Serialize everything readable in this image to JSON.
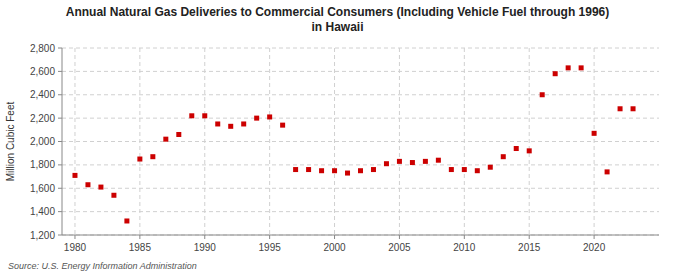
{
  "chart_data": {
    "type": "scatter",
    "title": "Annual Natural Gas Deliveries to Commercial Consumers (Including Vehicle Fuel through 1996)\nin Hawaii",
    "ylabel": "Million Cubic Feet",
    "source": "Source: U.S. Energy Information Administration",
    "color": "#cc0000",
    "marker": "square",
    "grid": true,
    "xlim": [
      1979,
      2025
    ],
    "ylim": [
      1200,
      2800
    ],
    "xticks": [
      1980,
      1985,
      1990,
      1995,
      2000,
      2005,
      2010,
      2015,
      2020
    ],
    "yticks": [
      {
        "value": 1200,
        "label": "1,200"
      },
      {
        "value": 1400,
        "label": "1,400"
      },
      {
        "value": 1600,
        "label": "1,600"
      },
      {
        "value": 1800,
        "label": "1,800"
      },
      {
        "value": 2000,
        "label": "2,000"
      },
      {
        "value": 2200,
        "label": "2,200"
      },
      {
        "value": 2400,
        "label": "2,400"
      },
      {
        "value": 2600,
        "label": "2,600"
      },
      {
        "value": 2800,
        "label": "2,800"
      }
    ],
    "x": [
      1980,
      1981,
      1982,
      1983,
      1984,
      1985,
      1986,
      1987,
      1988,
      1989,
      1990,
      1991,
      1992,
      1993,
      1994,
      1995,
      1996,
      1997,
      1998,
      1999,
      2000,
      2001,
      2002,
      2003,
      2004,
      2005,
      2006,
      2007,
      2008,
      2009,
      2010,
      2011,
      2012,
      2013,
      2014,
      2015,
      2016,
      2017,
      2018,
      2019,
      2020,
      2021,
      2022,
      2023
    ],
    "values": [
      1710,
      1630,
      1610,
      1540,
      1320,
      1850,
      1870,
      2020,
      2060,
      2220,
      2220,
      2150,
      2130,
      2150,
      2200,
      2210,
      2140,
      1760,
      1760,
      1750,
      1750,
      1730,
      1750,
      1760,
      1810,
      1830,
      1820,
      1830,
      1840,
      1760,
      1760,
      1750,
      1780,
      1870,
      1940,
      1920,
      2400,
      2580,
      2630,
      2630,
      2070,
      1740,
      2280,
      2280
    ]
  }
}
